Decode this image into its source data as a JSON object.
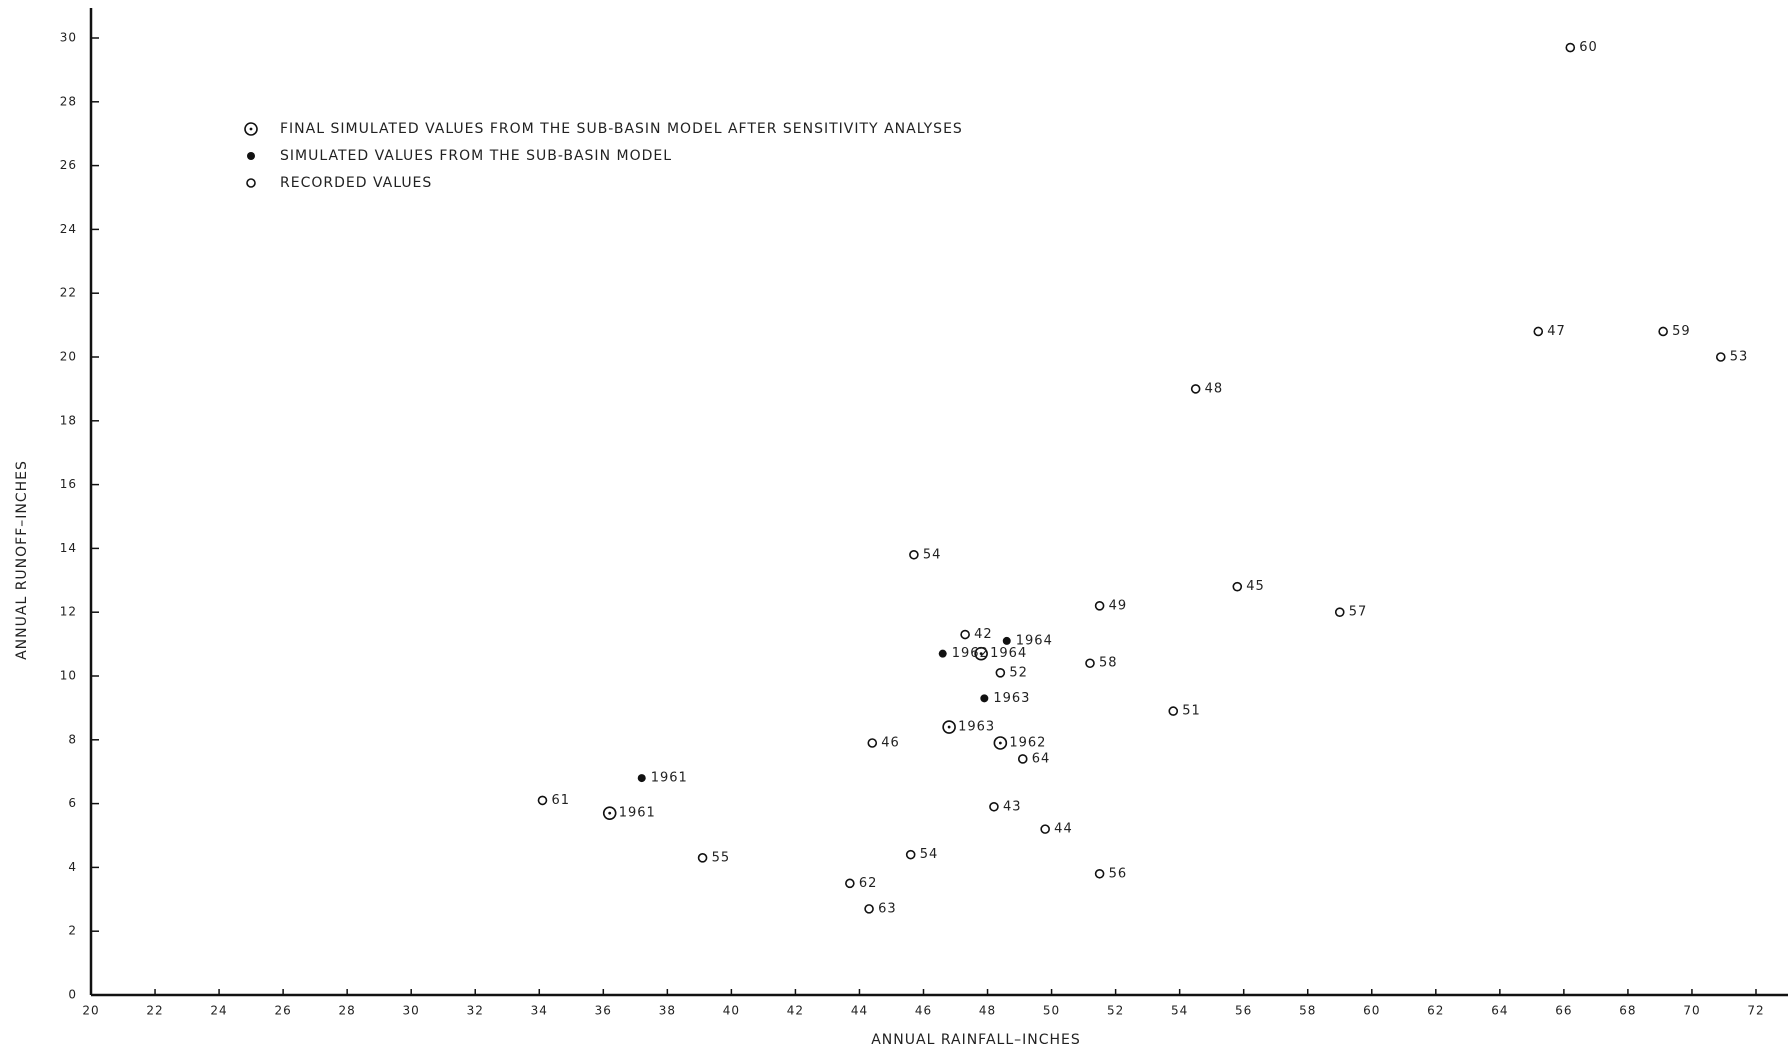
{
  "chart_data": {
    "type": "scatter",
    "x_label": "ANNUAL RAINFALL–INCHES",
    "y_label": "ANNUAL RUNOFF–INCHES",
    "xlim": [
      20,
      72
    ],
    "ylim": [
      0,
      30
    ],
    "xticks": [
      20,
      22,
      24,
      26,
      28,
      30,
      32,
      34,
      36,
      38,
      40,
      42,
      44,
      46,
      48,
      50,
      52,
      54,
      56,
      58,
      60,
      62,
      64,
      66,
      68,
      70,
      72
    ],
    "yticks": [
      0,
      2,
      4,
      6,
      8,
      10,
      12,
      14,
      16,
      18,
      20,
      22,
      24,
      26,
      28,
      30
    ],
    "grid": false,
    "series": [
      {
        "name": "FINAL SIMULATED VALUES FROM THE SUB-BASIN MODEL AFTER SENSITIVITY ANALYSES",
        "marker": "circle-dot",
        "color": "#111",
        "x": [
          36.2,
          47.8,
          46.8,
          48.4
        ],
        "values": [
          5.7,
          10.7,
          8.4,
          7.9
        ],
        "labels": [
          "1961",
          "1964",
          "1963",
          "1962"
        ]
      },
      {
        "name": "SIMULATED VALUES FROM THE SUB-BASIN MODEL",
        "marker": "filled",
        "color": "#111",
        "x": [
          37.2,
          46.6,
          48.6,
          47.9
        ],
        "values": [
          6.8,
          10.7,
          11.1,
          9.3
        ],
        "labels": [
          "1961",
          "1962",
          "1964",
          "1963"
        ]
      },
      {
        "name": "RECORDED VALUES",
        "marker": "open",
        "color": "#111",
        "x": [
          66.2,
          65.2,
          69.1,
          70.9,
          54.5,
          45.7,
          55.8,
          59.0,
          51.5,
          47.3,
          48.4,
          51.2,
          53.8,
          44.4,
          49.1,
          34.1,
          48.2,
          49.8,
          39.1,
          45.6,
          51.5,
          43.7,
          44.3
        ],
        "values": [
          29.7,
          20.8,
          20.8,
          20.0,
          19.0,
          13.8,
          12.8,
          12.0,
          12.2,
          11.3,
          10.1,
          10.4,
          8.9,
          7.9,
          7.4,
          6.1,
          5.9,
          5.2,
          4.3,
          4.4,
          3.8,
          3.5,
          2.7
        ],
        "labels": [
          "60",
          "47",
          "59",
          "53",
          "48",
          "54",
          "45",
          "57",
          "49",
          "42",
          "52",
          "58",
          "51",
          "46",
          "64",
          "61",
          "43",
          "44",
          "55",
          "54",
          "56",
          "62",
          "63"
        ]
      }
    ]
  }
}
